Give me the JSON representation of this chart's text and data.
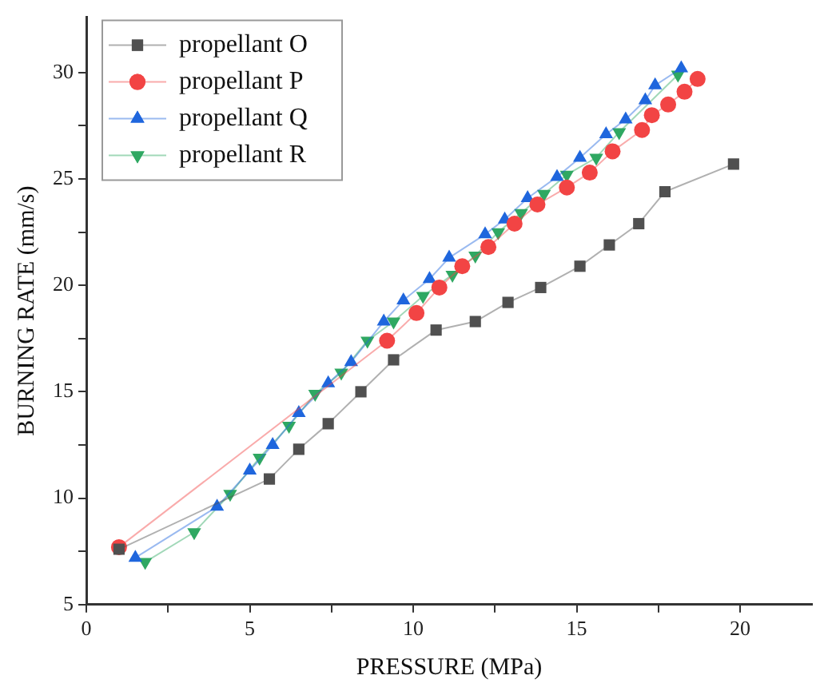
{
  "chart_data": {
    "type": "line",
    "xlabel": "PRESSURE (MPa)",
    "ylabel": "BURNING RATE (mm/s)",
    "legend": "top left",
    "grid": false,
    "xlim": [
      0,
      22.2
    ],
    "ylim": [
      5,
      32.6
    ],
    "xticks": [
      0,
      {
        "value": 2.5,
        "label": null
      },
      5,
      {
        "value": 7.5,
        "label": null
      },
      10,
      {
        "value": 12.5,
        "label": null
      },
      15,
      {
        "value": 17.5,
        "label": null
      },
      20
    ],
    "yticks": [
      5,
      {
        "value": 7.5,
        "label": null
      },
      10,
      {
        "value": 12.5,
        "label": null
      },
      15,
      {
        "value": 17.5,
        "label": null
      },
      20,
      {
        "value": 22.5,
        "label": null
      },
      25,
      {
        "value": 27.5,
        "label": null
      },
      30
    ],
    "series": [
      {
        "name": "propellant O",
        "color": "#505050",
        "marker": "square",
        "x": [
          1.0,
          5.6,
          6.5,
          7.4,
          8.4,
          9.4,
          10.7,
          11.9,
          12.9,
          13.9,
          15.1,
          16.0,
          16.9,
          17.7,
          19.8
        ],
        "values": [
          7.6,
          10.9,
          12.3,
          13.5,
          15.0,
          16.5,
          17.9,
          18.3,
          19.2,
          19.9,
          20.9,
          21.9,
          22.9,
          24.4,
          25.7
        ]
      },
      {
        "name": "propellant P",
        "color": "#f24444",
        "marker": "circle",
        "x": [
          1.0,
          9.2,
          10.1,
          10.8,
          11.5,
          12.3,
          13.1,
          13.8,
          14.7,
          15.4,
          16.1,
          17.0,
          17.3,
          17.8,
          18.3,
          18.7
        ],
        "values": [
          7.7,
          17.4,
          18.7,
          19.9,
          20.9,
          21.8,
          22.9,
          23.8,
          24.6,
          25.3,
          26.3,
          27.3,
          28.0,
          28.5,
          29.1,
          29.7
        ]
      },
      {
        "name": "propellant Q",
        "color": "#1f66dd",
        "marker": "triangle",
        "x": [
          1.5,
          4.0,
          5.0,
          5.7,
          6.5,
          7.4,
          8.1,
          9.1,
          9.7,
          10.5,
          11.1,
          12.2,
          12.8,
          13.5,
          14.4,
          15.1,
          15.9,
          16.5,
          17.1,
          17.4,
          18.2
        ],
        "values": [
          7.2,
          9.6,
          11.3,
          12.5,
          14.0,
          15.4,
          16.4,
          18.3,
          19.3,
          20.3,
          21.3,
          22.4,
          23.1,
          24.1,
          25.1,
          26.0,
          27.1,
          27.8,
          28.7,
          29.4,
          30.2
        ]
      },
      {
        "name": "propellant R",
        "color": "#2fa862",
        "marker": "triangle-down",
        "x": [
          1.8,
          3.3,
          4.4,
          5.3,
          6.2,
          7.0,
          7.8,
          8.6,
          9.4,
          10.3,
          11.2,
          11.9,
          12.6,
          13.3,
          14.0,
          14.7,
          15.6,
          16.3,
          18.1
        ],
        "values": [
          7.0,
          8.4,
          10.2,
          11.9,
          13.4,
          14.9,
          15.9,
          17.4,
          18.3,
          19.5,
          20.5,
          21.4,
          22.5,
          23.4,
          24.3,
          25.2,
          26.0,
          27.2,
          29.9
        ]
      }
    ]
  }
}
